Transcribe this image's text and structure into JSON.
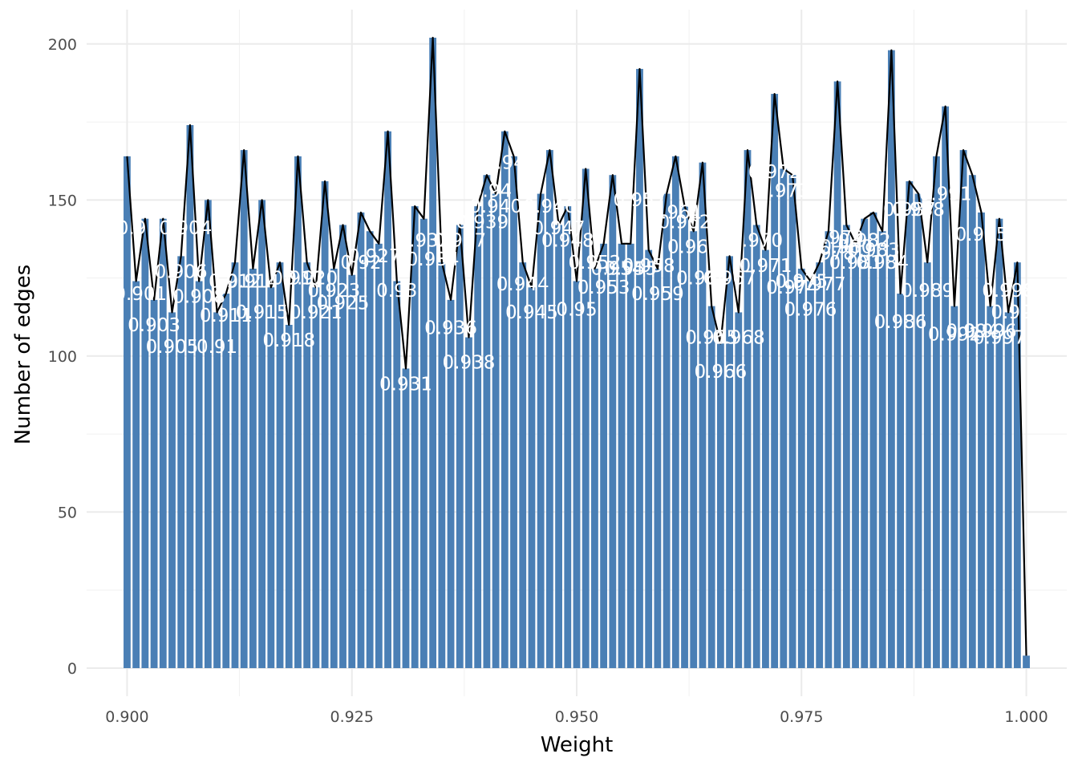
{
  "chart_data": {
    "type": "bar",
    "xlabel": "Weight",
    "ylabel": "Number of edges",
    "xlim": [
      0.8955,
      1.0045
    ],
    "ylim": [
      -9,
      211
    ],
    "xticks": [
      0.9,
      0.925,
      0.95,
      0.975,
      1.0
    ],
    "xtick_labels": [
      "0.900",
      "0.925",
      "0.950",
      "0.975",
      "1.000"
    ],
    "yticks": [
      0,
      50,
      100,
      150,
      200
    ],
    "ytick_labels": [
      "0",
      "50",
      "100",
      "150",
      "200"
    ],
    "grid": true,
    "bin_width": 0.001,
    "bar_color": "#4A7FB5",
    "line_color": "#000000",
    "label_color": "#ffffff",
    "x": [
      0.9,
      0.901,
      0.902,
      0.903,
      0.904,
      0.905,
      0.906,
      0.907,
      0.908,
      0.909,
      0.91,
      0.911,
      0.912,
      0.913,
      0.914,
      0.915,
      0.916,
      0.917,
      0.918,
      0.919,
      0.92,
      0.921,
      0.922,
      0.923,
      0.924,
      0.925,
      0.926,
      0.927,
      0.928,
      0.929,
      0.93,
      0.931,
      0.932,
      0.933,
      0.934,
      0.935,
      0.936,
      0.937,
      0.938,
      0.939,
      0.94,
      0.941,
      0.942,
      0.943,
      0.944,
      0.945,
      0.946,
      0.947,
      0.948,
      0.949,
      0.95,
      0.951,
      0.952,
      0.953,
      0.954,
      0.955,
      0.956,
      0.957,
      0.958,
      0.959,
      0.96,
      0.961,
      0.962,
      0.963,
      0.964,
      0.965,
      0.966,
      0.967,
      0.968,
      0.969,
      0.97,
      0.971,
      0.972,
      0.973,
      0.974,
      0.975,
      0.976,
      0.977,
      0.978,
      0.979,
      0.98,
      0.981,
      0.982,
      0.983,
      0.984,
      0.985,
      0.986,
      0.987,
      0.988,
      0.989,
      0.99,
      0.991,
      0.992,
      0.993,
      0.994,
      0.995,
      0.996,
      0.997,
      0.998,
      0.999,
      1.0
    ],
    "values": [
      164,
      124,
      144,
      118,
      144,
      114,
      132,
      174,
      124,
      150,
      114,
      120,
      130,
      166,
      128,
      150,
      122,
      130,
      110,
      164,
      130,
      122,
      156,
      128,
      142,
      126,
      146,
      140,
      136,
      172,
      124,
      96,
      148,
      144,
      202,
      130,
      118,
      142,
      106,
      148,
      158,
      152,
      172,
      164,
      130,
      122,
      152,
      166,
      142,
      148,
      124,
      160,
      128,
      136,
      158,
      136,
      136,
      192,
      134,
      128,
      152,
      164,
      148,
      140,
      162,
      116,
      104,
      132,
      114,
      166,
      142,
      134,
      184,
      160,
      158,
      128,
      124,
      130,
      140,
      188,
      142,
      136,
      144,
      146,
      140,
      198,
      120,
      156,
      152,
      130,
      164,
      180,
      116,
      166,
      158,
      146,
      116,
      144,
      114,
      130,
      4
    ],
    "labels": [
      {
        "x": 0.9005,
        "y": 139,
        "text": "0.9"
      },
      {
        "x": 0.9015,
        "y": 118,
        "text": "0.901"
      },
      {
        "x": 0.903,
        "y": 108,
        "text": "0.903"
      },
      {
        "x": 0.905,
        "y": 101,
        "text": "0.905"
      },
      {
        "x": 0.9065,
        "y": 139,
        "text": "0.904"
      },
      {
        "x": 0.906,
        "y": 125,
        "text": "0.906"
      },
      {
        "x": 0.908,
        "y": 117,
        "text": "0.908"
      },
      {
        "x": 0.91,
        "y": 101,
        "text": "0.91"
      },
      {
        "x": 0.911,
        "y": 111,
        "text": "0.911"
      },
      {
        "x": 0.912,
        "y": 122,
        "text": "0.912"
      },
      {
        "x": 0.914,
        "y": 122,
        "text": "0.914"
      },
      {
        "x": 0.915,
        "y": 112,
        "text": "0.915"
      },
      {
        "x": 0.918,
        "y": 103,
        "text": "0.918"
      },
      {
        "x": 0.919,
        "y": 123,
        "text": "0.917"
      },
      {
        "x": 0.9205,
        "y": 123,
        "text": "0.920"
      },
      {
        "x": 0.921,
        "y": 112,
        "text": "0.921"
      },
      {
        "x": 0.923,
        "y": 119,
        "text": "0.923"
      },
      {
        "x": 0.924,
        "y": 115,
        "text": "0.925"
      },
      {
        "x": 0.926,
        "y": 128,
        "text": "0.92"
      },
      {
        "x": 0.9275,
        "y": 130,
        "text": "0.927"
      },
      {
        "x": 0.93,
        "y": 119,
        "text": "0.93"
      },
      {
        "x": 0.931,
        "y": 89,
        "text": "0.931"
      },
      {
        "x": 0.933,
        "y": 135,
        "text": "0.933"
      },
      {
        "x": 0.934,
        "y": 129,
        "text": "0.934"
      },
      {
        "x": 0.936,
        "y": 107,
        "text": "0.936"
      },
      {
        "x": 0.937,
        "y": 135,
        "text": "0.937"
      },
      {
        "x": 0.938,
        "y": 96,
        "text": "0.938"
      },
      {
        "x": 0.9395,
        "y": 141,
        "text": "0.939"
      },
      {
        "x": 0.941,
        "y": 146,
        "text": "0.940"
      },
      {
        "x": 0.9405,
        "y": 151,
        "text": "0.94"
      },
      {
        "x": 0.942,
        "y": 160,
        "text": "0.94"
      },
      {
        "x": 0.944,
        "y": 121,
        "text": "0.944"
      },
      {
        "x": 0.945,
        "y": 112,
        "text": "0.945"
      },
      {
        "x": 0.947,
        "y": 146,
        "text": "0.946"
      },
      {
        "x": 0.948,
        "y": 139,
        "text": "0.947"
      },
      {
        "x": 0.949,
        "y": 135,
        "text": "0.948"
      },
      {
        "x": 0.95,
        "y": 113,
        "text": "0.95"
      },
      {
        "x": 0.952,
        "y": 128,
        "text": "0.952"
      },
      {
        "x": 0.953,
        "y": 120,
        "text": "0.953"
      },
      {
        "x": 0.9545,
        "y": 126,
        "text": "0.954"
      },
      {
        "x": 0.956,
        "y": 126,
        "text": "0.955"
      },
      {
        "x": 0.957,
        "y": 148,
        "text": "0.957"
      },
      {
        "x": 0.958,
        "y": 127,
        "text": "0.958"
      },
      {
        "x": 0.959,
        "y": 118,
        "text": "0.959"
      },
      {
        "x": 0.961,
        "y": 144,
        "text": "0.961"
      },
      {
        "x": 0.962,
        "y": 141,
        "text": "0.962"
      },
      {
        "x": 0.963,
        "y": 133,
        "text": "0.963"
      },
      {
        "x": 0.964,
        "y": 123,
        "text": "0.964"
      },
      {
        "x": 0.965,
        "y": 104,
        "text": "0.965"
      },
      {
        "x": 0.966,
        "y": 93,
        "text": "0.966"
      },
      {
        "x": 0.967,
        "y": 123,
        "text": "0.967"
      },
      {
        "x": 0.968,
        "y": 104,
        "text": "0.968"
      },
      {
        "x": 0.97,
        "y": 135,
        "text": "0.970"
      },
      {
        "x": 0.971,
        "y": 127,
        "text": "0.971"
      },
      {
        "x": 0.972,
        "y": 157,
        "text": "0.972"
      },
      {
        "x": 0.973,
        "y": 151,
        "text": "0.973"
      },
      {
        "x": 0.974,
        "y": 120,
        "text": "0.974"
      },
      {
        "x": 0.975,
        "y": 122,
        "text": "0.975"
      },
      {
        "x": 0.976,
        "y": 113,
        "text": "0.976"
      },
      {
        "x": 0.977,
        "y": 121,
        "text": "0.977"
      },
      {
        "x": 0.978,
        "y": 131,
        "text": "0.978"
      },
      {
        "x": 0.979,
        "y": 136,
        "text": "0.979"
      },
      {
        "x": 0.98,
        "y": 133,
        "text": "0.980"
      },
      {
        "x": 0.981,
        "y": 128,
        "text": "0.981"
      },
      {
        "x": 0.982,
        "y": 135,
        "text": "0.982"
      },
      {
        "x": 0.983,
        "y": 132,
        "text": "0.983"
      },
      {
        "x": 0.984,
        "y": 128,
        "text": "0.984"
      },
      {
        "x": 0.986,
        "y": 109,
        "text": "0.986"
      },
      {
        "x": 0.987,
        "y": 145,
        "text": "0.987"
      },
      {
        "x": 0.988,
        "y": 145,
        "text": "0.988"
      },
      {
        "x": 0.989,
        "y": 119,
        "text": "0.989"
      },
      {
        "x": 0.991,
        "y": 150,
        "text": "0.991"
      },
      {
        "x": 0.992,
        "y": 105,
        "text": "0.992"
      },
      {
        "x": 0.994,
        "y": 106,
        "text": "0.994"
      },
      {
        "x": 0.995,
        "y": 137,
        "text": "0.995"
      },
      {
        "x": 0.996,
        "y": 106,
        "text": "0.996"
      },
      {
        "x": 0.997,
        "y": 104,
        "text": "0.997"
      },
      {
        "x": 0.998,
        "y": 119,
        "text": "0.998"
      },
      {
        "x": 0.999,
        "y": 112,
        "text": "0.999"
      }
    ]
  }
}
